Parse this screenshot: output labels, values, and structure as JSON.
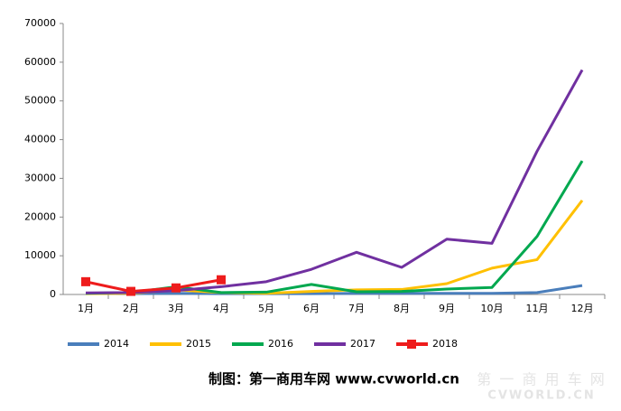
{
  "chart_data": {
    "type": "line",
    "categories": [
      "1月",
      "2月",
      "3月",
      "4月",
      "5月",
      "6月",
      "7月",
      "8月",
      "9月",
      "10月",
      "11月",
      "12月"
    ],
    "series": [
      {
        "name": "2014",
        "color": "#4a7ebb",
        "values": [
          300,
          200,
          300,
          200,
          200,
          200,
          300,
          300,
          300,
          300,
          500,
          2300
        ]
      },
      {
        "name": "2015",
        "color": "#ffc000",
        "values": [
          200,
          300,
          1200,
          500,
          300,
          800,
          1200,
          1300,
          2800,
          6800,
          9000,
          24300
        ]
      },
      {
        "name": "2016",
        "color": "#00a84f",
        "values": [
          300,
          500,
          2000,
          500,
          600,
          2600,
          700,
          800,
          1400,
          1800,
          15000,
          34500
        ]
      },
      {
        "name": "2017",
        "color": "#7030a0",
        "values": [
          400,
          500,
          1000,
          2000,
          3300,
          6500,
          10900,
          7000,
          14300,
          13200,
          37000,
          58000
        ]
      },
      {
        "name": "2018",
        "color": "#ee1c1c",
        "marker": "square",
        "values": [
          3300,
          800,
          1700,
          3800,
          null,
          null,
          null,
          null,
          null,
          null,
          null,
          null
        ]
      }
    ],
    "ylim": [
      0,
      70000
    ],
    "yticks": [
      0,
      10000,
      20000,
      30000,
      40000,
      50000,
      60000,
      70000
    ],
    "grid": false,
    "legend": "bottom",
    "footer": "制图：第一商用车网 www.cvworld.cn",
    "watermark": [
      "第 一 商 用 车 网",
      "CVWORLD.CN"
    ]
  }
}
